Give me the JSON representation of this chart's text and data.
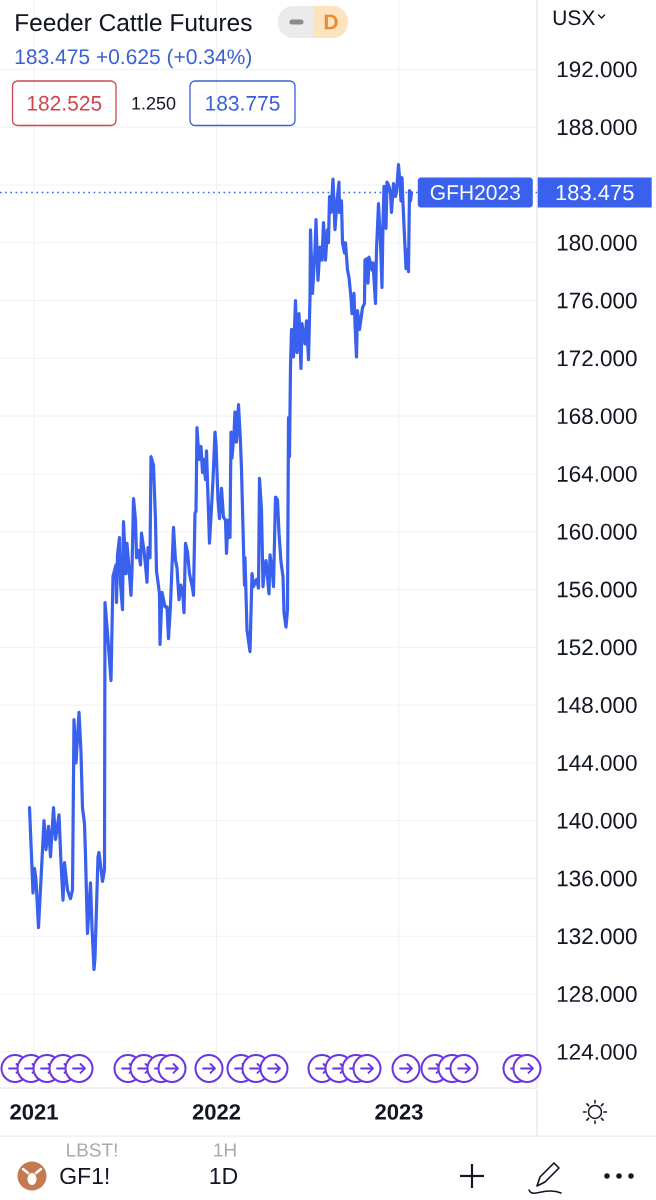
{
  "chart_data": {
    "type": "line",
    "title": "Feeder Cattle Futures",
    "subtitle": "183.475 +0.625 (+0.34%)",
    "ylabel": "USX",
    "x": [
      "2020-12-23",
      "2020-12-30",
      "2021-01-02",
      "2021-01-05",
      "2021-01-10",
      "2021-01-17",
      "2021-01-21",
      "2021-01-25",
      "2021-01-30",
      "2021-02-03",
      "2021-02-09",
      "2021-02-13",
      "2021-02-20",
      "2021-02-24",
      "2021-02-28",
      "2021-03-03",
      "2021-03-09",
      "2021-03-15",
      "2021-03-19",
      "2021-03-22",
      "2021-03-26",
      "2021-04-01",
      "2021-04-05",
      "2021-04-08",
      "2021-04-12",
      "2021-04-14",
      "2021-04-18",
      "2021-04-24",
      "2021-04-27",
      "2021-05-01",
      "2021-05-03",
      "2021-05-09",
      "2021-05-11",
      "2021-05-18",
      "2021-05-22",
      "2021-05-23",
      "2021-05-28",
      "2021-06-04",
      "2021-06-08",
      "2021-06-14",
      "2021-06-15",
      "2021-06-17",
      "2021-06-21",
      "2021-06-23",
      "2021-06-27",
      "2021-06-29",
      "2021-07-04",
      "2021-07-06",
      "2021-07-10",
      "2021-07-14",
      "2021-07-16",
      "2021-07-19",
      "2021-07-23",
      "2021-07-25",
      "2021-07-29",
      "2021-08-02",
      "2021-08-04",
      "2021-08-09",
      "2021-08-13",
      "2021-08-15",
      "2021-08-17",
      "2021-08-21",
      "2021-08-23",
      "2021-08-28",
      "2021-09-01",
      "2021-09-03",
      "2021-09-09",
      "2021-09-10",
      "2021-09-14",
      "2021-09-20",
      "2021-09-24",
      "2021-09-27",
      "2021-10-01",
      "2021-10-07",
      "2021-10-11",
      "2021-10-14",
      "2021-10-18",
      "2021-10-22",
      "2021-10-26",
      "2021-10-28",
      "2021-10-31",
      "2021-11-04",
      "2021-11-08",
      "2021-11-14",
      "2021-11-16",
      "2021-11-19",
      "2021-11-21",
      "2021-11-23",
      "2021-11-27",
      "2021-12-01",
      "2021-12-04",
      "2021-12-06",
      "2021-12-10",
      "2021-12-12",
      "2021-12-18",
      "2021-12-23",
      "2021-12-25",
      "2021-12-29",
      "2021-12-31",
      "2022-01-04",
      "2022-01-07",
      "2022-01-11",
      "2022-01-15",
      "2022-01-19",
      "2022-01-21",
      "2022-01-24",
      "2022-01-28",
      "2022-01-30",
      "2022-02-01",
      "2022-02-05",
      "2022-02-07",
      "2022-02-10",
      "2022-02-14",
      "2022-02-18",
      "2022-02-20",
      "2022-02-24",
      "2022-02-26",
      "2022-02-27",
      "2022-03-03",
      "2022-03-09",
      "2022-03-13",
      "2022-03-16",
      "2022-03-22",
      "2022-03-26",
      "2022-03-28",
      "2022-04-01",
      "2022-04-04",
      "2022-04-06",
      "2022-04-10",
      "2022-04-16",
      "2022-04-18",
      "2022-04-23",
      "2022-04-25",
      "2022-04-29",
      "2022-05-03",
      "2022-05-06",
      "2022-05-10",
      "2022-05-14",
      "2022-05-16",
      "2022-05-20",
      "2022-05-23",
      "2022-05-25",
      "2022-05-27",
      "2022-05-29",
      "2022-05-31",
      "2022-06-04",
      "2022-06-08",
      "2022-06-11",
      "2022-06-15",
      "2022-06-19",
      "2022-06-21",
      "2022-06-27",
      "2022-06-30",
      "2022-07-04",
      "2022-07-07",
      "2022-07-08",
      "2022-07-12",
      "2022-07-17",
      "2022-07-19",
      "2022-07-23",
      "2022-07-27",
      "2022-07-31",
      "2022-08-03",
      "2022-08-07",
      "2022-08-11",
      "2022-08-13",
      "2022-08-15",
      "2022-08-18",
      "2022-08-22",
      "2022-08-26",
      "2022-08-30",
      "2022-09-03",
      "2022-09-04",
      "2022-09-08",
      "2022-09-10",
      "2022-09-14",
      "2022-09-16",
      "2022-09-20",
      "2022-09-23",
      "2022-09-27",
      "2022-09-29",
      "2022-10-03",
      "2022-10-05",
      "2022-10-08",
      "2022-10-10",
      "2022-10-14",
      "2022-10-20",
      "2022-10-24",
      "2022-10-25",
      "2022-10-29",
      "2022-10-31",
      "2022-11-02",
      "2022-11-08",
      "2022-11-10",
      "2022-11-15",
      "2022-11-17",
      "2022-11-21",
      "2022-11-25",
      "2022-11-28",
      "2022-11-30",
      "2022-12-02",
      "2022-12-06",
      "2022-12-08",
      "2022-12-12",
      "2022-12-15",
      "2022-12-17",
      "2022-12-21",
      "2022-12-25",
      "2022-12-27",
      "2022-12-31",
      "2023-01-03",
      "2023-01-05",
      "2023-01-07",
      "2023-01-09",
      "2023-01-13",
      "2023-01-15",
      "2023-01-17",
      "2023-01-20",
      "2023-01-22",
      "2023-01-24",
      "2023-01-26"
    ],
    "values": [
      140.9,
      135.0,
      136.7,
      135.9,
      132.6,
      137.3,
      140.0,
      138.0,
      139.6,
      137.5,
      140.9,
      138.7,
      140.4,
      137.1,
      134.5,
      137.1,
      135.2,
      134.6,
      135.2,
      147.0,
      144.0,
      147.5,
      144.7,
      140.9,
      139.8,
      137.6,
      132.2,
      135.7,
      132.6,
      129.7,
      130.5,
      137.5,
      137.8,
      135.8,
      136.6,
      155.1,
      153.0,
      149.7,
      156.9,
      157.7,
      155.1,
      158.4,
      159.6,
      156.4,
      154.6,
      160.7,
      157.1,
      159.2,
      157.5,
      155.6,
      157.3,
      162.3,
      160.8,
      158.2,
      158.7,
      157.7,
      159.9,
      158.7,
      157.3,
      156.5,
      158.9,
      158.2,
      165.2,
      164.6,
      160.8,
      157.3,
      155.7,
      152.2,
      155.8,
      154.8,
      154.8,
      152.6,
      154.9,
      160.3,
      158.0,
      157.5,
      155.3,
      156.3,
      155.5,
      154.4,
      159.2,
      158.6,
      157.1,
      156.1,
      155.6,
      161.3,
      161.4,
      167.2,
      165.0,
      165.9,
      164.1,
      165.0,
      163.6,
      165.6,
      159.2,
      162.3,
      163.6,
      166.9,
      166.1,
      162.2,
      160.9,
      163.0,
      161.0,
      160.8,
      158.5,
      160.8,
      159.6,
      166.9,
      165.1,
      166.8,
      168.3,
      166.2,
      168.8,
      166.2,
      164.3,
      158.9,
      156.3,
      158.2,
      153.2,
      151.7,
      157.1,
      156.2,
      156.7,
      156.1,
      163.7,
      161.5,
      156.2,
      157.1,
      158.0,
      155.7,
      158.4,
      157.1,
      156.2,
      162.4,
      162.2,
      159.9,
      157.9,
      156.9,
      154.4,
      153.4,
      154.6,
      167.9,
      165.2,
      171.4,
      174.0,
      172.1,
      176.0,
      172.4,
      175.1,
      171.3,
      174.4,
      173.0,
      174.6,
      171.9,
      176.2,
      180.9,
      176.5,
      179.5,
      181.6,
      177.4,
      179.7,
      178.8,
      181.4,
      178.8,
      180.9,
      180.0,
      183.2,
      182.1,
      184.4,
      180.9,
      182.9,
      184.2,
      182.1,
      182.9,
      180.0,
      179.3,
      180.0,
      178.1,
      177.6,
      176.2,
      175.1,
      176.5,
      174.4,
      172.1,
      175.3,
      174.0,
      175.5,
      175.8,
      178.8,
      178.9,
      177.2,
      179.0,
      178.1,
      178.6,
      175.8,
      179.5,
      182.7,
      180.0,
      176.9,
      181.4,
      183.9,
      181.0,
      184.2,
      183.9,
      183.4,
      182.1,
      184.1,
      183.2,
      183.5,
      185.4,
      184.1,
      182.9,
      184.5,
      182.7,
      179.7,
      178.2,
      179.5,
      178.0,
      183.6,
      182.9,
      183.475
    ],
    "color": "#3a60ee",
    "line_style": "solid",
    "grid": true,
    "xlim": [
      "2020-10-25",
      "2023-10-04"
    ],
    "xticks": [
      "2021",
      "2022",
      "2023"
    ],
    "ylim": [
      121.5,
      196.8
    ],
    "yticks": [
      {
        "value": 124,
        "label": "124.000"
      },
      {
        "value": 128,
        "label": "128.000"
      },
      {
        "value": 132,
        "label": "132.000"
      },
      {
        "value": 136,
        "label": "136.000"
      },
      {
        "value": 140,
        "label": "140.000"
      },
      {
        "value": 144,
        "label": "144.000"
      },
      {
        "value": 148,
        "label": "148.000"
      },
      {
        "value": 152,
        "label": "152.000"
      },
      {
        "value": 156,
        "label": "156.000"
      },
      {
        "value": 160,
        "label": "160.000"
      },
      {
        "value": 164,
        "label": "164.000"
      },
      {
        "value": 168,
        "label": "168.000"
      },
      {
        "value": 172,
        "label": "172.000"
      },
      {
        "value": 176,
        "label": "176.000"
      },
      {
        "value": 180,
        "label": "180.000"
      },
      {
        "value": 184,
        "label": null
      },
      {
        "value": 188,
        "label": "188.000"
      },
      {
        "value": 192,
        "label": "192.000"
      }
    ],
    "ref_lines": [
      {
        "axis": "y",
        "value": 183.475,
        "label": "GFH2023",
        "color": "#3a60ee",
        "line_style": "dotted"
      }
    ],
    "annotations": [
      "D",
      "182.525",
      "1.250",
      "183.775",
      "GF1!",
      "1D",
      "LBST!",
      "1H",
      "183.475"
    ]
  }
}
